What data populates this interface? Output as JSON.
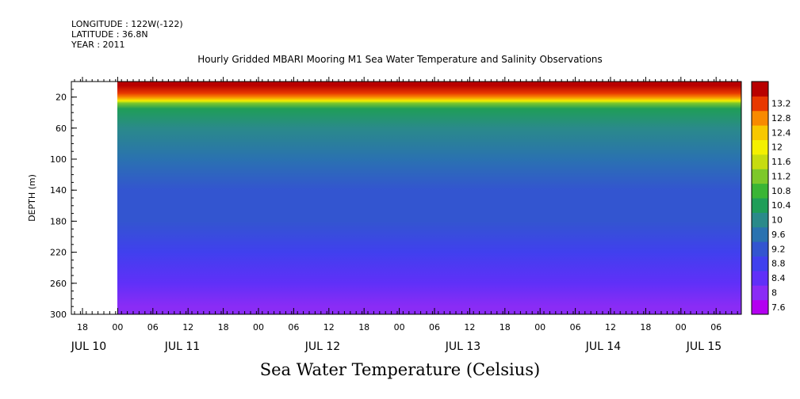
{
  "header": {
    "longitude": "LONGITUDE : 122W(-122)",
    "latitude": "LATITUDE : 36.8N",
    "year": "YEAR : 2011"
  },
  "chart_data": {
    "type": "heatmap",
    "title": "Hourly Gridded MBARI Mooring M1 Sea Water Temperature and Salinity Observations",
    "subtitle": "Sea Water Temperature (Celsius)",
    "ylabel": "DEPTH (m)",
    "ylim": [
      300,
      0
    ],
    "yticks": [
      20,
      60,
      100,
      140,
      180,
      220,
      260,
      300
    ],
    "x_hour_ticks": [
      "18",
      "00",
      "06",
      "12",
      "18",
      "00",
      "06",
      "12",
      "18",
      "00",
      "06",
      "12",
      "18",
      "00",
      "06",
      "12",
      "18",
      "00",
      "06"
    ],
    "x_day_labels": [
      "JUL 10",
      "JUL 11",
      "JUL 12",
      "JUL 13",
      "JUL 14",
      "JUL 15"
    ],
    "colorbar": {
      "levels": [
        7.6,
        8,
        8.4,
        8.8,
        9.2,
        9.6,
        10,
        10.4,
        10.8,
        11.2,
        11.6,
        12,
        12.4,
        12.8,
        13.2
      ],
      "colors": [
        "#b300f0",
        "#8a2cf5",
        "#6030f8",
        "#4040ee",
        "#3355d0",
        "#2a72b0",
        "#2a8a8a",
        "#1f9e58",
        "#3ab535",
        "#7dc82a",
        "#c6dc10",
        "#f4f000",
        "#f8c800",
        "#f88a00",
        "#e83800",
        "#b80000"
      ]
    },
    "depth_profile": [
      {
        "depth": 5,
        "value": 13.2
      },
      {
        "depth": 15,
        "value": 12.8
      },
      {
        "depth": 20,
        "value": 12.4
      },
      {
        "depth": 25,
        "value": 11.6
      },
      {
        "depth": 28,
        "value": 11.0
      },
      {
        "depth": 35,
        "value": 10.2
      },
      {
        "depth": 60,
        "value": 9.9
      },
      {
        "depth": 100,
        "value": 9.5
      },
      {
        "depth": 140,
        "value": 9.1
      },
      {
        "depth": 180,
        "value": 8.9
      },
      {
        "depth": 220,
        "value": 8.5
      },
      {
        "depth": 260,
        "value": 8.2
      },
      {
        "depth": 290,
        "value": 7.9
      }
    ]
  }
}
